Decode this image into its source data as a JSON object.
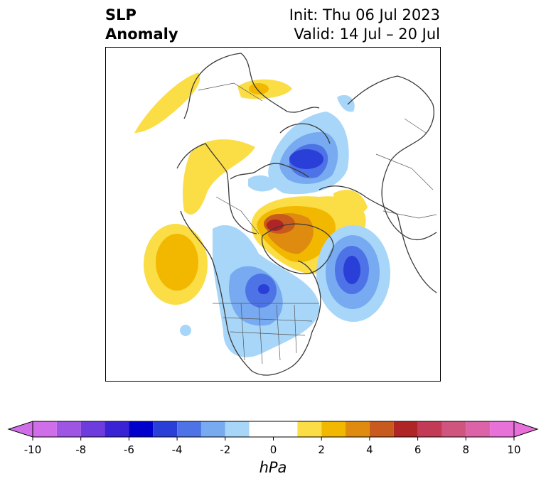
{
  "title": {
    "left_line1": "SLP",
    "left_line2": "Anomaly",
    "right_line1": "Init: Thu 06 Jul 2023",
    "right_line2": "Valid: 14 Jul – 20 Jul"
  },
  "colorbar": {
    "units": "hPa",
    "min": -10,
    "max": 10,
    "extend": "both",
    "levels": [
      -10,
      -9,
      -8,
      -7,
      -6,
      -5,
      -4,
      -3,
      -2,
      -1,
      1,
      2,
      3,
      4,
      5,
      6,
      7,
      8,
      9,
      10
    ],
    "colors": [
      "#cf6ee8",
      "#9f55e3",
      "#6e3bdc",
      "#3a22d5",
      "#0000cc",
      "#2a3ed8",
      "#4d73e6",
      "#77aaf0",
      "#a8d6f9",
      "#ffffff",
      "#fbdd46",
      "#f2b800",
      "#df8b10",
      "#c75a1c",
      "#af2425",
      "#c23a55",
      "#cf547e",
      "#dc63a8",
      "#e870d9"
    ],
    "ticks": [
      {
        "value": -10,
        "label": "-10"
      },
      {
        "value": -8,
        "label": "-8"
      },
      {
        "value": -6,
        "label": "-6"
      },
      {
        "value": -4,
        "label": "-4"
      },
      {
        "value": -2,
        "label": "-2"
      },
      {
        "value": 0,
        "label": "0"
      },
      {
        "value": 2,
        "label": "2"
      },
      {
        "value": 4,
        "label": "4"
      },
      {
        "value": 6,
        "label": "6"
      },
      {
        "value": 8,
        "label": "8"
      },
      {
        "value": 10,
        "label": "10"
      }
    ]
  },
  "map": {
    "projection": "north-polar-stereographic",
    "field": "sea-level pressure anomaly",
    "features": [
      {
        "name": "alaska-positive-anomaly",
        "sign": "positive",
        "peak": 1
      },
      {
        "name": "north-pacific-positive-anomaly",
        "sign": "positive",
        "peak": 3
      },
      {
        "name": "greenland-positive-anomaly",
        "sign": "positive",
        "peak": 6
      },
      {
        "name": "siberia-negative-anomaly",
        "sign": "negative",
        "peak": -5
      },
      {
        "name": "north-atlantic-negative-anomaly",
        "sign": "negative",
        "peak": -5
      },
      {
        "name": "north-america-negative-anomaly",
        "sign": "negative",
        "peak": -4
      }
    ]
  }
}
